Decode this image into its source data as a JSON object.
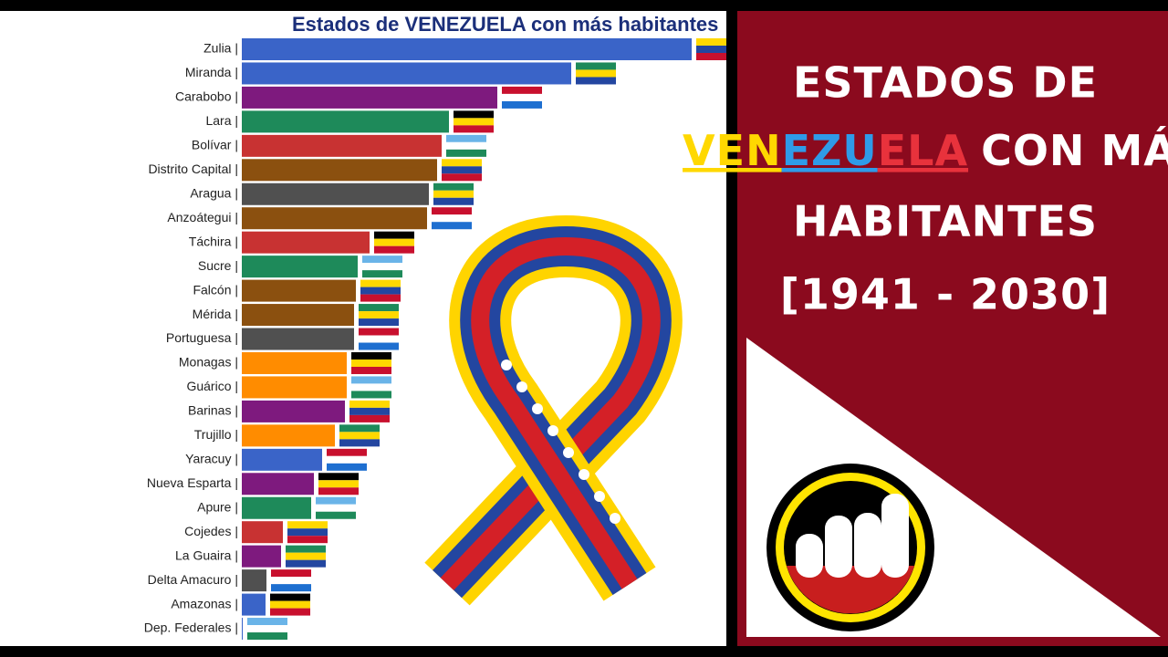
{
  "chart_data": {
    "type": "bar",
    "orientation": "horizontal",
    "title": "Estados de VENEZUELA con más habitantes",
    "categories": [
      "Zulia |",
      "Miranda |",
      "Carabobo |",
      "Lara |",
      "Bolívar |",
      "Distrito Capital |",
      "Aragua |",
      "Anzoátegui |",
      "Táchira |",
      "Sucre |",
      "Falcón |",
      "Mérida |",
      "Portuguesa |",
      "Monagas |",
      "Guárico |",
      "Barinas |",
      "Trujillo |",
      "Yaracuy |",
      "Nueva Esparta |",
      "Apure |",
      "Cojedes |",
      "La Guaira |",
      "Delta Amacuro |",
      "Amazonas |",
      "Dep. Federales |"
    ],
    "values": [
      493,
      361,
      280,
      227,
      219,
      214,
      205,
      203,
      140,
      127,
      125,
      123,
      123,
      115,
      115,
      113,
      102,
      88,
      79,
      76,
      45,
      43,
      27,
      26,
      1
    ],
    "colors": [
      "#3a64c8",
      "#3a64c8",
      "#7e1a7e",
      "#1e8a5a",
      "#c83232",
      "#8b500f",
      "#505050",
      "#8b500f",
      "#c83232",
      "#1e8a5a",
      "#8b500f",
      "#8b500f",
      "#505050",
      "#ff8c00",
      "#ff8c00",
      "#7e1a7e",
      "#ff8c00",
      "#3a64c8",
      "#7e1a7e",
      "#1e8a5a",
      "#c83232",
      "#7e1a7e",
      "#505050",
      "#3a64c8",
      "#3a64c8"
    ],
    "xlim": [
      0,
      500
    ]
  },
  "banner": {
    "line1": "ESTADOS DE",
    "word_parts": [
      "VEN",
      "EZU",
      "ELA"
    ],
    "line2_rest": "CON MÁS",
    "line3": "HABITANTES",
    "line4": "[1941 - 2030]"
  }
}
